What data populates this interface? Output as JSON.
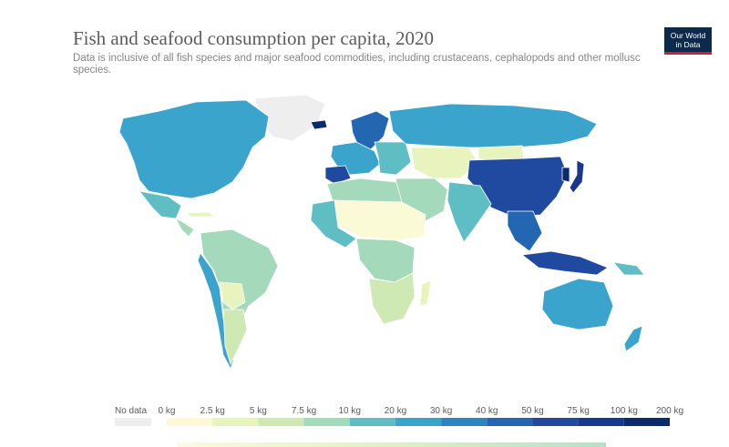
{
  "header": {
    "title": "Fish and seafood consumption per capita, 2020",
    "subtitle": "Data is inclusive of all fish species and major seafood commodities, including crustaceans, cephalopods and other mollusc species.",
    "logo_line1": "Our World",
    "logo_line2": "in Data"
  },
  "legend": {
    "no_data_label": "No data",
    "no_data_color": "#eeeeee",
    "labels": [
      "0 kg",
      "2.5 kg",
      "5 kg",
      "7.5 kg",
      "10 kg",
      "20 kg",
      "30 kg",
      "40 kg",
      "50 kg",
      "75 kg",
      "100 kg",
      "200 kg"
    ],
    "colors": [
      "#fbfad6",
      "#e8f3be",
      "#cfe9b4",
      "#a4d9bb",
      "#5fbec3",
      "#3ba4cc",
      "#2a85c1",
      "#2366b1",
      "#1f4aa0",
      "#1a3790",
      "#0e2a6e"
    ]
  },
  "map_colors": {
    "greenland": "#eeeeee",
    "north_america": "#3ba4cc",
    "mexico": "#5fbec3",
    "central_america": "#a4d9bb",
    "caribbean": "#e8f3be",
    "south_america": "#a4d9bb",
    "peru_chile": "#3ba4cc",
    "bolivia_paraguay": "#e8f3be",
    "argentina": "#cfe9b4",
    "europe_west": "#3ba4cc",
    "iberia": "#1f4aa0",
    "scandinavia": "#2366b1",
    "iceland": "#0e2a6e",
    "russia": "#3ba4cc",
    "eastern_europe": "#5fbec3",
    "central_asia": "#e8f3be",
    "middle_east": "#a4d9bb",
    "africa_north": "#a4d9bb",
    "africa_sahel": "#fbfad6",
    "africa_west": "#5fbec3",
    "africa_central": "#a4d9bb",
    "africa_south": "#cfe9b4",
    "madagascar": "#e8f3be",
    "india": "#5fbec3",
    "china": "#1f4aa0",
    "mongolia": "#e8f3be",
    "japan": "#1a3790",
    "korea": "#0e2a6e",
    "southeast_asia": "#2366b1",
    "indonesia": "#1f4aa0",
    "png": "#5fbec3",
    "australia": "#3ba4cc",
    "new_zealand": "#3ba4cc"
  }
}
